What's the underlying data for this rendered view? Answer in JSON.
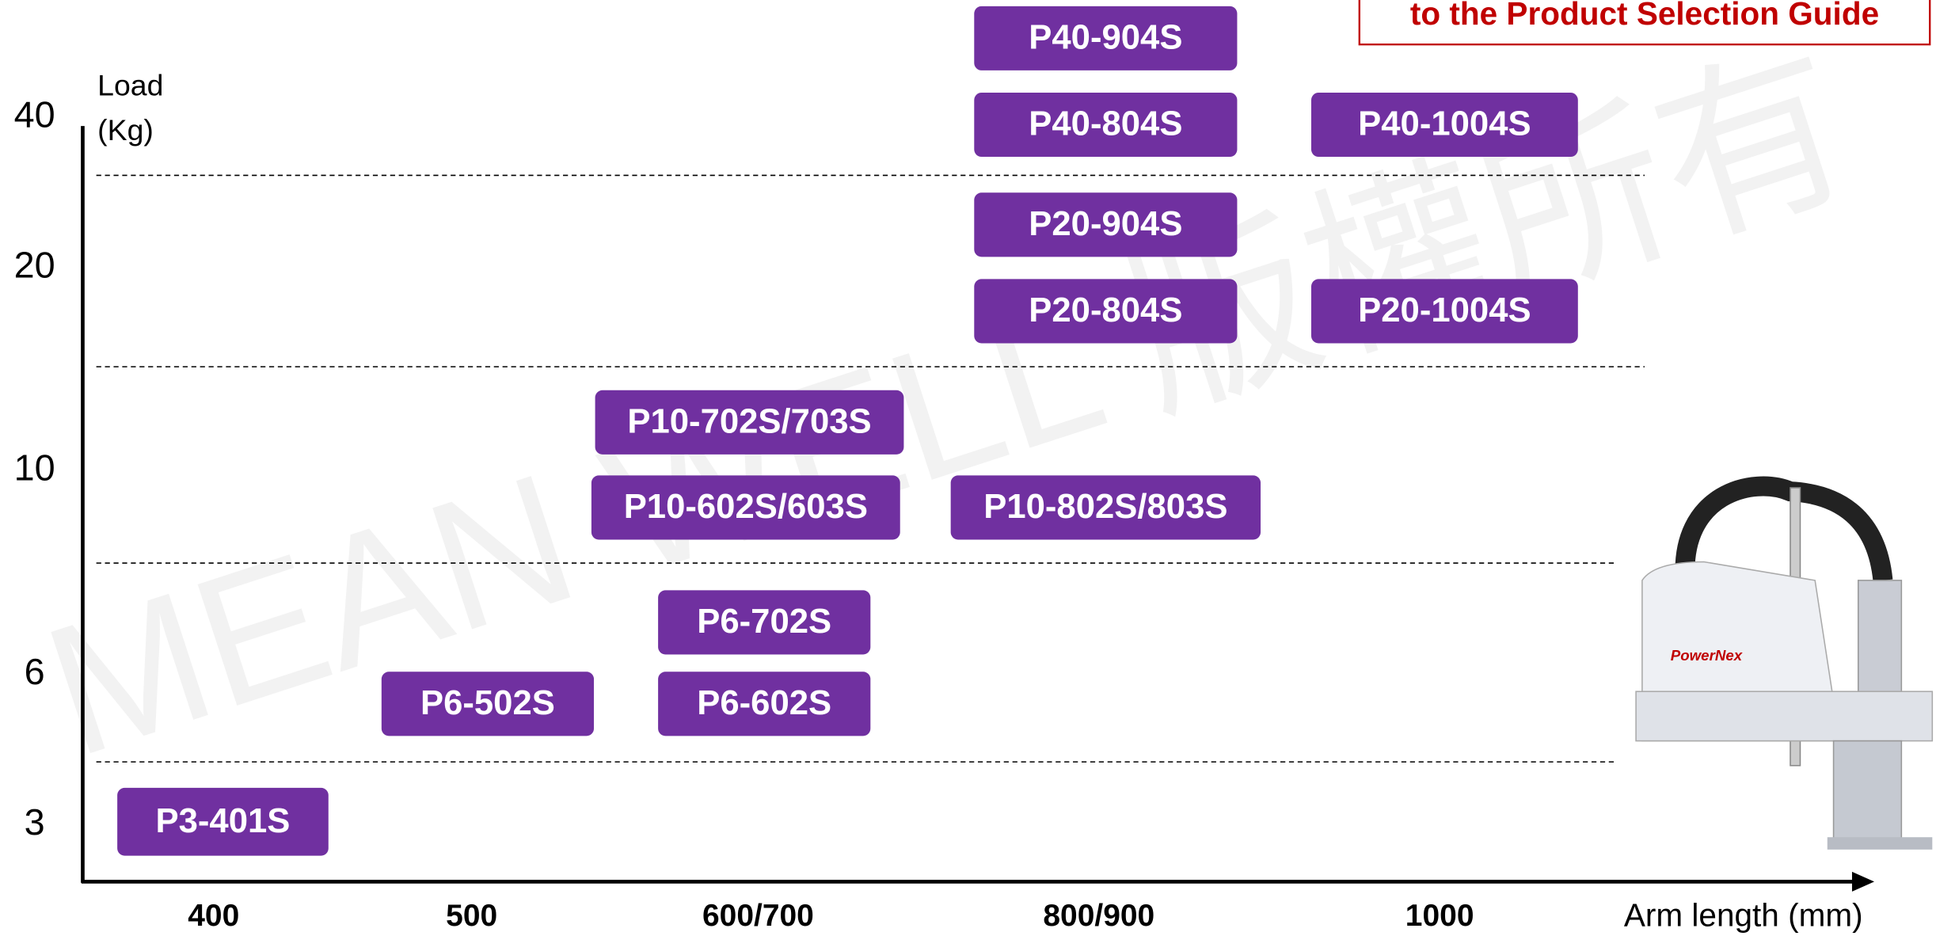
{
  "guide_link": "to the Product Selection Guide",
  "y_axis": {
    "title_lines": [
      "Load",
      "(Kg)"
    ],
    "labels": [
      "40",
      "20",
      "10",
      "6",
      "3"
    ]
  },
  "x_axis": {
    "title": "Arm length (mm)",
    "labels": [
      "400",
      "500",
      "600/700",
      "800/900",
      "1000"
    ]
  },
  "products": [
    {
      "label": "P40-904S"
    },
    {
      "label": "P40-804S"
    },
    {
      "label": "P40-1004S"
    },
    {
      "label": "P20-904S"
    },
    {
      "label": "P20-804S"
    },
    {
      "label": "P20-1004S"
    },
    {
      "label": "P10-702S/703S"
    },
    {
      "label": "P10-602S/603S"
    },
    {
      "label": "P10-802S/803S"
    },
    {
      "label": "P6-702S"
    },
    {
      "label": "P6-502S"
    },
    {
      "label": "P6-602S"
    },
    {
      "label": "P3-401S"
    }
  ],
  "watermark": "MEAN WELL 版權所有"
}
